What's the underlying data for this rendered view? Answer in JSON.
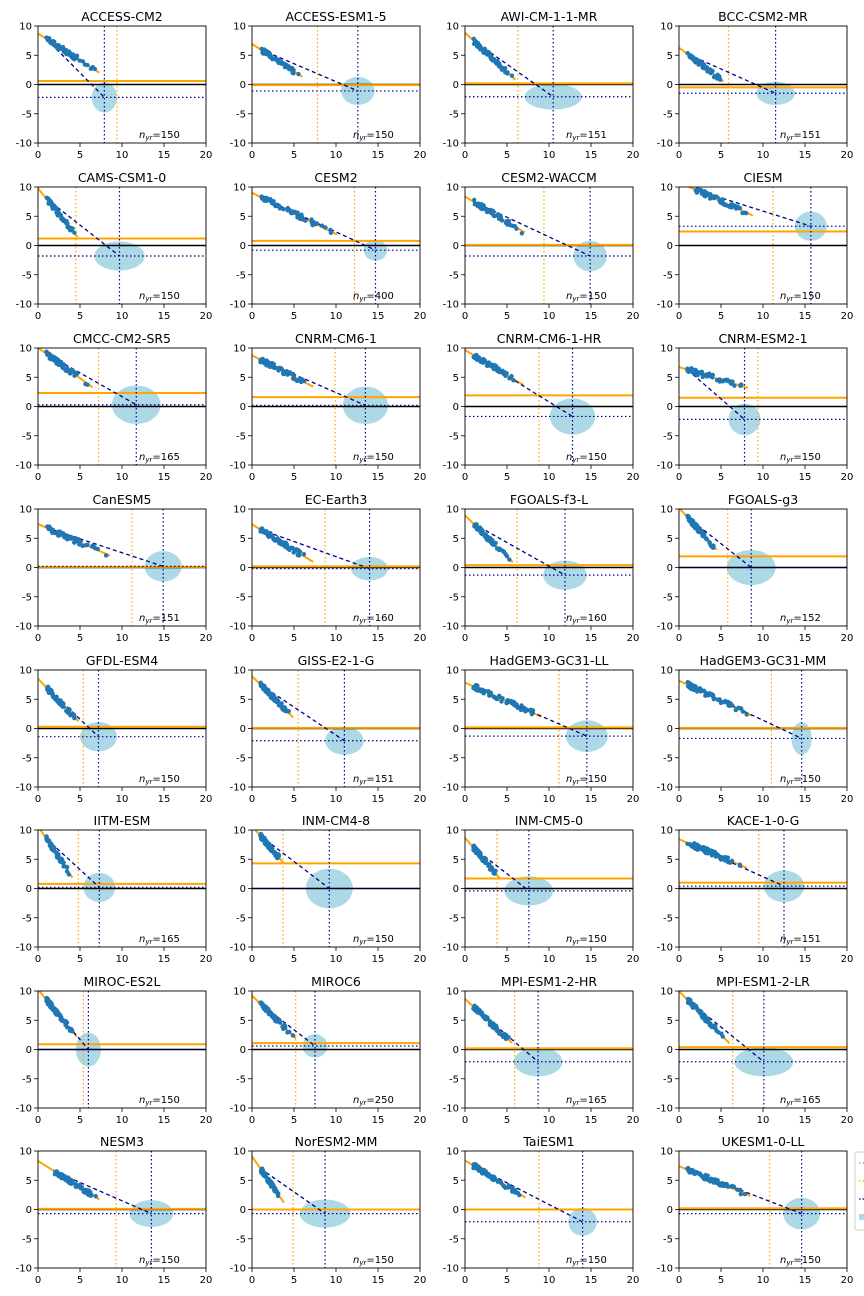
{
  "figure": {
    "x_ticks": [
      "0",
      "5",
      "10",
      "15",
      "20"
    ],
    "y_ticks": [
      "10",
      "5",
      "0",
      "-5",
      "-10"
    ],
    "xlim": [
      0,
      20
    ],
    "ylim": [
      -10,
      10
    ],
    "annotation_prefix": "n",
    "annotation_sub": "yr",
    "colors": {
      "fit_line": "#ffa500",
      "points": "#1f77b4",
      "projection": "#00008b",
      "ellipse": "#add8e6",
      "zero_line": "#000000",
      "axes": "#000000"
    }
  },
  "chart_data": [
    {
      "type": "scatter",
      "title": "ACCESS-CM2",
      "n_yr": "150",
      "x0": 1,
      "y0": 7.8,
      "x1": 7,
      "y1": 2.3,
      "xe": 7.9,
      "ye": -2.2,
      "rx": 1.5,
      "ry": 2.6,
      "ch": 0.6,
      "vx": 9.4
    },
    {
      "type": "scatter",
      "title": "ACCESS-ESM1-5",
      "n_yr": "150",
      "x0": 1,
      "y0": 6.0,
      "x1": 5.7,
      "y1": 1.6,
      "xe": 12.6,
      "ye": -1.1,
      "rx": 2.0,
      "ry": 2.4,
      "ch": -0.1,
      "vx": 7.8
    },
    {
      "type": "scatter",
      "title": "AWI-CM-1-1-MR",
      "n_yr": "151",
      "x0": 1,
      "y0": 7.5,
      "x1": 5.7,
      "y1": 1.2,
      "xe": 10.5,
      "ye": -2.1,
      "rx": 3.4,
      "ry": 2.2,
      "ch": 0.2,
      "vx": 6.3
    },
    {
      "type": "scatter",
      "title": "BCC-CSM2-MR",
      "n_yr": "151",
      "x0": 1,
      "y0": 5.2,
      "x1": 5.0,
      "y1": 0.8,
      "xe": 11.5,
      "ye": -1.5,
      "rx": 2.3,
      "ry": 2.0,
      "ch": -0.5,
      "vx": 5.9
    },
    {
      "type": "scatter",
      "title": "CAMS-CSM1-0",
      "n_yr": "150",
      "x0": 1,
      "y0": 8.0,
      "x1": 4.4,
      "y1": 2.0,
      "xe": 9.7,
      "ye": -1.8,
      "rx": 3.0,
      "ry": 2.5,
      "ch": 1.2,
      "vx": 4.5
    },
    {
      "type": "scatter",
      "title": "CESM2",
      "n_yr": "400",
      "x0": 1,
      "y0": 8.3,
      "x1": 9.8,
      "y1": 2.1,
      "xe": 14.7,
      "ye": -0.8,
      "rx": 1.4,
      "ry": 1.8,
      "ch": 0.8,
      "vx": 12.2
    },
    {
      "type": "scatter",
      "title": "CESM2-WACCM",
      "n_yr": "150",
      "x0": 1,
      "y0": 7.5,
      "x1": 6.8,
      "y1": 2.5,
      "xe": 14.9,
      "ye": -1.8,
      "rx": 2.0,
      "ry": 2.6,
      "ch": 0.1,
      "vx": 9.4
    },
    {
      "type": "scatter",
      "title": "CIESM",
      "n_yr": "150",
      "x0": 2,
      "y0": 9.5,
      "x1": 8.5,
      "y1": 5.3,
      "xe": 15.7,
      "ye": 3.3,
      "rx": 1.9,
      "ry": 2.5,
      "ch": 2.4,
      "vx": 11.2
    },
    {
      "type": "scatter",
      "title": "CMCC-CM2-SR5",
      "n_yr": "165",
      "x0": 1,
      "y0": 9.0,
      "x1": 6.2,
      "y1": 3.6,
      "xe": 11.7,
      "ye": 0.3,
      "rx": 2.9,
      "ry": 3.3,
      "ch": 2.3,
      "vx": 7.2
    },
    {
      "type": "scatter",
      "title": "CNRM-CM6-1",
      "n_yr": "150",
      "x0": 1,
      "y0": 8.0,
      "x1": 7.0,
      "y1": 3.6,
      "xe": 13.5,
      "ye": 0.2,
      "rx": 2.7,
      "ry": 3.2,
      "ch": 1.6,
      "vx": 9.9
    },
    {
      "type": "scatter",
      "title": "CNRM-CM6-1-HR",
      "n_yr": "150",
      "x0": 1,
      "y0": 8.8,
      "x1": 6.7,
      "y1": 3.9,
      "xe": 12.8,
      "ye": -1.7,
      "rx": 2.7,
      "ry": 3.1,
      "ch": 1.9,
      "vx": 8.8
    },
    {
      "type": "scatter",
      "title": "CNRM-ESM2-1",
      "n_yr": "150",
      "x0": 1,
      "y0": 6.3,
      "x1": 7.9,
      "y1": 3.3,
      "xe": 7.8,
      "ye": -2.2,
      "rx": 1.9,
      "ry": 2.7,
      "ch": 1.5,
      "vx": 9.4
    },
    {
      "type": "scatter",
      "title": "CanESM5",
      "n_yr": "151",
      "x0": 1,
      "y0": 6.8,
      "x1": 8.3,
      "y1": 2.2,
      "xe": 14.9,
      "ye": 0.2,
      "rx": 2.2,
      "ry": 2.6,
      "ch": 0.1,
      "vx": 11.2
    },
    {
      "type": "scatter",
      "title": "EC-Earth3",
      "n_yr": "160",
      "x0": 1,
      "y0": 6.5,
      "x1": 7.0,
      "y1": 1.2,
      "xe": 14.0,
      "ye": -0.2,
      "rx": 2.2,
      "ry": 2.0,
      "ch": 0.2,
      "vx": 8.7
    },
    {
      "type": "scatter",
      "title": "FGOALS-f3-L",
      "n_yr": "160",
      "x0": 1,
      "y0": 7.5,
      "x1": 5.4,
      "y1": 1.3,
      "xe": 11.9,
      "ye": -1.3,
      "rx": 2.6,
      "ry": 2.5,
      "ch": 0.4,
      "vx": 6.2
    },
    {
      "type": "scatter",
      "title": "FGOALS-g3",
      "n_yr": "152",
      "x0": 1,
      "y0": 8.6,
      "x1": 4.2,
      "y1": 3.5,
      "xe": 8.6,
      "ye": 0.0,
      "rx": 2.9,
      "ry": 3.0,
      "ch": 1.9,
      "vx": 5.8
    },
    {
      "type": "scatter",
      "title": "GFDL-ESM4",
      "n_yr": "150",
      "x0": 1,
      "y0": 7.0,
      "x1": 4.5,
      "y1": 1.7,
      "xe": 7.2,
      "ye": -1.4,
      "rx": 2.2,
      "ry": 2.5,
      "ch": 0.3,
      "vx": 5.4
    },
    {
      "type": "scatter",
      "title": "GISS-E2-1-G",
      "n_yr": "151",
      "x0": 1,
      "y0": 7.5,
      "x1": 4.6,
      "y1": 2.3,
      "xe": 11.0,
      "ye": -2.1,
      "rx": 2.3,
      "ry": 2.4,
      "ch": 0.1,
      "vx": 5.5
    },
    {
      "type": "scatter",
      "title": "HadGEM3-GC31-LL",
      "n_yr": "150",
      "x0": 1,
      "y0": 7.2,
      "x1": 8.8,
      "y1": 2.2,
      "xe": 14.5,
      "ye": -1.3,
      "rx": 2.5,
      "ry": 2.7,
      "ch": 0.2,
      "vx": 11.2
    },
    {
      "type": "scatter",
      "title": "HadGEM3-GC31-MM",
      "n_yr": "150",
      "x0": 1,
      "y0": 7.5,
      "x1": 8.4,
      "y1": 2.4,
      "xe": 14.6,
      "ye": -1.7,
      "rx": 1.2,
      "ry": 2.8,
      "ch": 0.1,
      "vx": 11.0
    },
    {
      "type": "scatter",
      "title": "IITM-ESM",
      "n_yr": "165",
      "x0": 1,
      "y0": 8.5,
      "x1": 3.8,
      "y1": 2.5,
      "xe": 7.3,
      "ye": 0.2,
      "rx": 1.9,
      "ry": 2.5,
      "ch": 0.8,
      "vx": 4.8
    },
    {
      "type": "scatter",
      "title": "INM-CM4-8",
      "n_yr": "150",
      "x0": 1,
      "y0": 9.0,
      "x1": 3.5,
      "y1": 4.8,
      "xe": 9.2,
      "ye": 0.0,
      "rx": 2.8,
      "ry": 3.4,
      "ch": 4.3,
      "vx": 3.7
    },
    {
      "type": "scatter",
      "title": "INM-CM5-0",
      "n_yr": "150",
      "x0": 1,
      "y0": 7.0,
      "x1": 3.8,
      "y1": 2.3,
      "xe": 7.6,
      "ye": -0.4,
      "rx": 2.9,
      "ry": 2.5,
      "ch": 1.7,
      "vx": 3.8
    },
    {
      "type": "scatter",
      "title": "KACE-1-0-G",
      "n_yr": "151",
      "x0": 1,
      "y0": 7.8,
      "x1": 7.8,
      "y1": 3.7,
      "xe": 12.5,
      "ye": 0.4,
      "rx": 2.4,
      "ry": 2.7,
      "ch": 1.0,
      "vx": 9.5
    },
    {
      "type": "scatter",
      "title": "MIROC-ES2L",
      "n_yr": "150",
      "x0": 1,
      "y0": 8.5,
      "x1": 4.3,
      "y1": 2.7,
      "xe": 6.0,
      "ye": 0.0,
      "rx": 1.5,
      "ry": 2.9,
      "ch": 0.9,
      "vx": 5.4
    },
    {
      "type": "scatter",
      "title": "MIROC6",
      "n_yr": "250",
      "x0": 1,
      "y0": 7.8,
      "x1": 4.9,
      "y1": 2.3,
      "xe": 7.5,
      "ye": 0.6,
      "rx": 1.5,
      "ry": 2.0,
      "ch": 1.1,
      "vx": 5.2
    },
    {
      "type": "scatter",
      "title": "MPI-ESM1-2-HR",
      "n_yr": "165",
      "x0": 1,
      "y0": 7.3,
      "x1": 5.3,
      "y1": 1.5,
      "xe": 8.7,
      "ye": -2.1,
      "rx": 2.9,
      "ry": 2.5,
      "ch": 0.2,
      "vx": 5.9
    },
    {
      "type": "scatter",
      "title": "MPI-ESM1-2-LR",
      "n_yr": "165",
      "x0": 1,
      "y0": 8.5,
      "x1": 5.7,
      "y1": 1.5,
      "xe": 10.1,
      "ye": -2.1,
      "rx": 3.5,
      "ry": 2.5,
      "ch": 0.4,
      "vx": 6.4
    },
    {
      "type": "scatter",
      "title": "NESM3",
      "n_yr": "150",
      "x0": 2,
      "y0": 6.5,
      "x1": 7.0,
      "y1": 2.0,
      "xe": 13.5,
      "ye": -0.7,
      "rx": 2.6,
      "ry": 2.3,
      "ch": 0.1,
      "vx": 9.3
    },
    {
      "type": "scatter",
      "title": "NorESM2-MM",
      "n_yr": "150",
      "x0": 1,
      "y0": 7.0,
      "x1": 3.5,
      "y1": 1.8,
      "xe": 8.7,
      "ye": -0.7,
      "rx": 3.0,
      "ry": 2.4,
      "ch": 0.0,
      "vx": 4.9
    },
    {
      "type": "scatter",
      "title": "TaiESM1",
      "n_yr": "150",
      "x0": 1,
      "y0": 7.5,
      "x1": 6.9,
      "y1": 2.3,
      "xe": 14.0,
      "ye": -2.1,
      "rx": 1.7,
      "ry": 2.4,
      "ch": 0.0,
      "vx": 8.8
    },
    {
      "type": "scatter",
      "title": "UKESM1-0-LL",
      "n_yr": "150",
      "x0": 1,
      "y0": 6.8,
      "x1": 8.2,
      "y1": 2.5,
      "xe": 14.6,
      "ye": -0.7,
      "rx": 2.2,
      "ry": 2.7,
      "ch": 0.2,
      "vx": 10.8
    }
  ]
}
